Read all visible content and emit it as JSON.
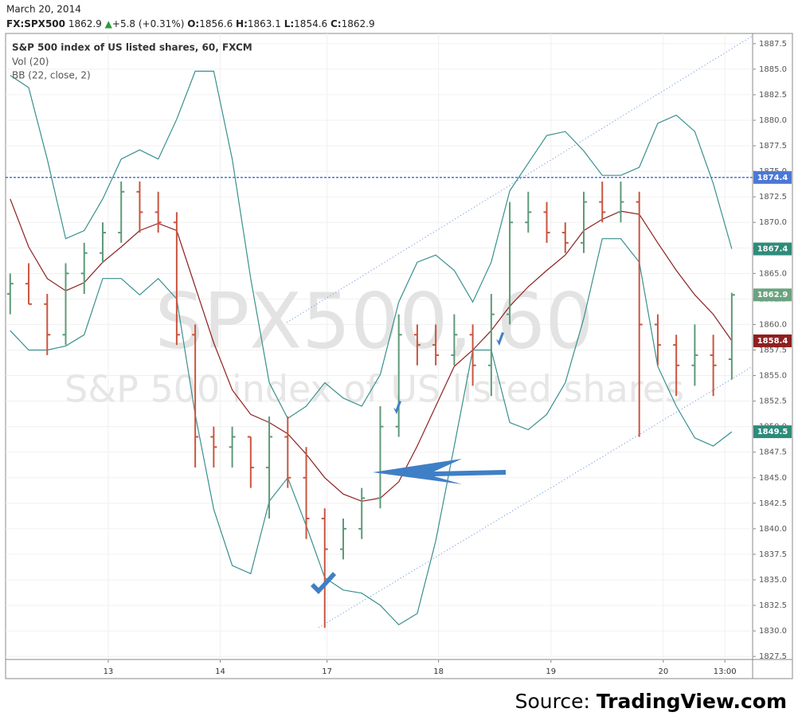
{
  "header": {
    "date": "March 20, 2014",
    "symbol": "FX:SPX500",
    "last": "1862.9",
    "change": "+5.8 (+0.31%)",
    "o_label": "O:",
    "o": "1856.6",
    "h_label": "H:",
    "h": "1863.1",
    "l_label": "L:",
    "l": "1854.6",
    "c_label": "C:",
    "c": "1862.9"
  },
  "chart_data": {
    "type": "ohlc",
    "title": "S&P 500 index of US listed shares, 60, FXCM",
    "indicators": [
      "Vol (20)",
      "BB (22, close, 2)"
    ],
    "watermark": "SPX500, 60",
    "watermark_subtitle": "S&P 500 index of US listed shares",
    "x": [
      1,
      5,
      9,
      13,
      17,
      21,
      25,
      29,
      33,
      37,
      41,
      45,
      49,
      53,
      57,
      61,
      65,
      69,
      73,
      77,
      81,
      85,
      89,
      93,
      97,
      101,
      105,
      109,
      113,
      117,
      121,
      125,
      129,
      133,
      137,
      141,
      145,
      149,
      153,
      157
    ],
    "open": [
      1863,
      1864,
      1862,
      1859,
      1865,
      1867,
      1869,
      1873,
      1871,
      1870,
      1859,
      1849,
      1848,
      1849,
      1846,
      1849,
      1845,
      1841,
      1838,
      1840,
      1843,
      1850,
      1859,
      1858,
      1857,
      1859,
      1856,
      1861,
      1870,
      1871,
      1869,
      1868,
      1872,
      1871,
      1872,
      1860,
      1858,
      1856,
      1857,
      1856.6
    ],
    "high": [
      1865,
      1866,
      1863,
      1866,
      1868,
      1870,
      1874,
      1874,
      1873,
      1871,
      1860,
      1850,
      1850,
      1849,
      1851,
      1851,
      1848,
      1842,
      1841,
      1844,
      1852,
      1861,
      1860,
      1860,
      1861,
      1860,
      1863,
      1872,
      1873,
      1872,
      1870,
      1873,
      1874,
      1874,
      1873,
      1861,
      1859,
      1860,
      1859,
      1863.1
    ],
    "low": [
      1861,
      1862,
      1857,
      1858,
      1863,
      1866,
      1868,
      1869,
      1869,
      1858,
      1846,
      1846,
      1846,
      1844,
      1841,
      1844,
      1839,
      1830.3,
      1837,
      1839,
      1842,
      1849,
      1856,
      1856,
      1856,
      1854,
      1853,
      1860,
      1869,
      1868,
      1867,
      1867,
      1870,
      1870,
      1849,
      1856,
      1853,
      1854,
      1853,
      1854.6
    ],
    "close": [
      1864,
      1862,
      1859,
      1865,
      1867,
      1869,
      1873,
      1871,
      1870,
      1859,
      1849,
      1848,
      1849,
      1846,
      1849,
      1845,
      1841,
      1838,
      1840,
      1843,
      1850,
      1859,
      1858,
      1857,
      1859,
      1856,
      1861,
      1870,
      1871,
      1869,
      1868,
      1872,
      1871,
      1872,
      1860,
      1858,
      1856,
      1857,
      1856,
      1862.9
    ],
    "bollinger": {
      "upper": [
        1884.4,
        1883.2,
        1876.2,
        1868.4,
        1869.2,
        1872.3,
        1876.2,
        1877.1,
        1876.2,
        1880.1,
        1884.8,
        1884.8,
        1876.2,
        1864.5,
        1854.3,
        1850.8,
        1852,
        1854.3,
        1852.8,
        1852,
        1855.1,
        1862.2,
        1866.1,
        1866.8,
        1865.3,
        1862.2,
        1866.1,
        1873.1,
        1875.8,
        1878.5,
        1878.9,
        1877,
        1874.6,
        1874.6,
        1875.4,
        1879.7,
        1880.5,
        1878.9,
        1873.8,
        1867.4
      ],
      "basis": [
        1872.3,
        1867.6,
        1864.5,
        1863.3,
        1864.1,
        1866.1,
        1867.6,
        1869.2,
        1869.9,
        1869.2,
        1863.7,
        1858.2,
        1853.6,
        1851.2,
        1850.4,
        1849.3,
        1847.3,
        1845,
        1843.4,
        1842.7,
        1843,
        1844.6,
        1848.1,
        1852,
        1855.9,
        1857.5,
        1859.4,
        1861.8,
        1863.7,
        1865.3,
        1866.8,
        1869.2,
        1870.3,
        1871.1,
        1870.8,
        1868,
        1865.3,
        1862.9,
        1861,
        1858.4
      ],
      "lower": [
        1859.4,
        1857.5,
        1857.5,
        1857.9,
        1859,
        1864.5,
        1864.5,
        1862.9,
        1864.5,
        1862.5,
        1851.2,
        1841.9,
        1836.4,
        1835.6,
        1842.7,
        1845,
        1840.3,
        1835.2,
        1834,
        1833.7,
        1832.5,
        1830.6,
        1831.7,
        1838.8,
        1848.1,
        1857.5,
        1857.5,
        1850.4,
        1849.7,
        1851.2,
        1854.3,
        1860.6,
        1868.4,
        1868.4,
        1866.1,
        1855.9,
        1852,
        1848.9,
        1848.1,
        1849.5
      ]
    },
    "up_color": "#5e9a78",
    "down_color": "#c9553f",
    "band_color": "#3a8f8f",
    "basis_color": "#8e2020",
    "hline": {
      "value": 1874.4,
      "color": "#4a78d8"
    },
    "price_labels": [
      {
        "value": 1874.4,
        "color": "#4a78d8"
      },
      {
        "value": 1867.4,
        "color": "#2e8b7a"
      },
      {
        "value": 1862.9,
        "color": "#6aa37f"
      },
      {
        "value": 1858.4,
        "color": "#8e2020"
      },
      {
        "value": 1849.5,
        "color": "#2e8b7a"
      }
    ],
    "xlim": [
      0,
      161.5
    ],
    "xticks": [
      {
        "value": 22.2,
        "label": "13"
      },
      {
        "value": 46.4,
        "label": "14"
      },
      {
        "value": 69.5,
        "label": "17"
      },
      {
        "value": 93.6,
        "label": "18"
      },
      {
        "value": 117.9,
        "label": "19"
      },
      {
        "value": 142.2,
        "label": "20"
      },
      {
        "value": 155.5,
        "label": "13:00"
      }
    ],
    "ylim": [
      1827.2,
      1888.5
    ],
    "yticks": [
      1827.5,
      {
        "value": 1830,
        "label": "1830.0"
      },
      1832.5,
      {
        "value": 1835,
        "label": "1835.0"
      },
      1837.5,
      {
        "value": 1840,
        "label": "1840.0"
      },
      1842.5,
      {
        "value": 1845,
        "label": "1845.0"
      },
      1847.5,
      {
        "value": 1850,
        "label": "1850.0"
      },
      1852.5,
      {
        "value": 1855,
        "label": "1855.0"
      },
      1857.5,
      {
        "value": 1860,
        "label": "1860.0"
      },
      1862.5,
      {
        "value": 1865,
        "label": "1865.0"
      },
      1867.5,
      {
        "value": 1870,
        "label": "1870.0"
      },
      1872.5,
      {
        "value": 1875,
        "label": "1875.0"
      },
      1877.5,
      {
        "value": 1880,
        "label": "1880.0"
      },
      1882.5,
      {
        "value": 1885,
        "label": "1885.0"
      },
      1887.5
    ],
    "grid": true
  },
  "source": {
    "prefix": "Source:",
    "name": "TradingView.com"
  }
}
